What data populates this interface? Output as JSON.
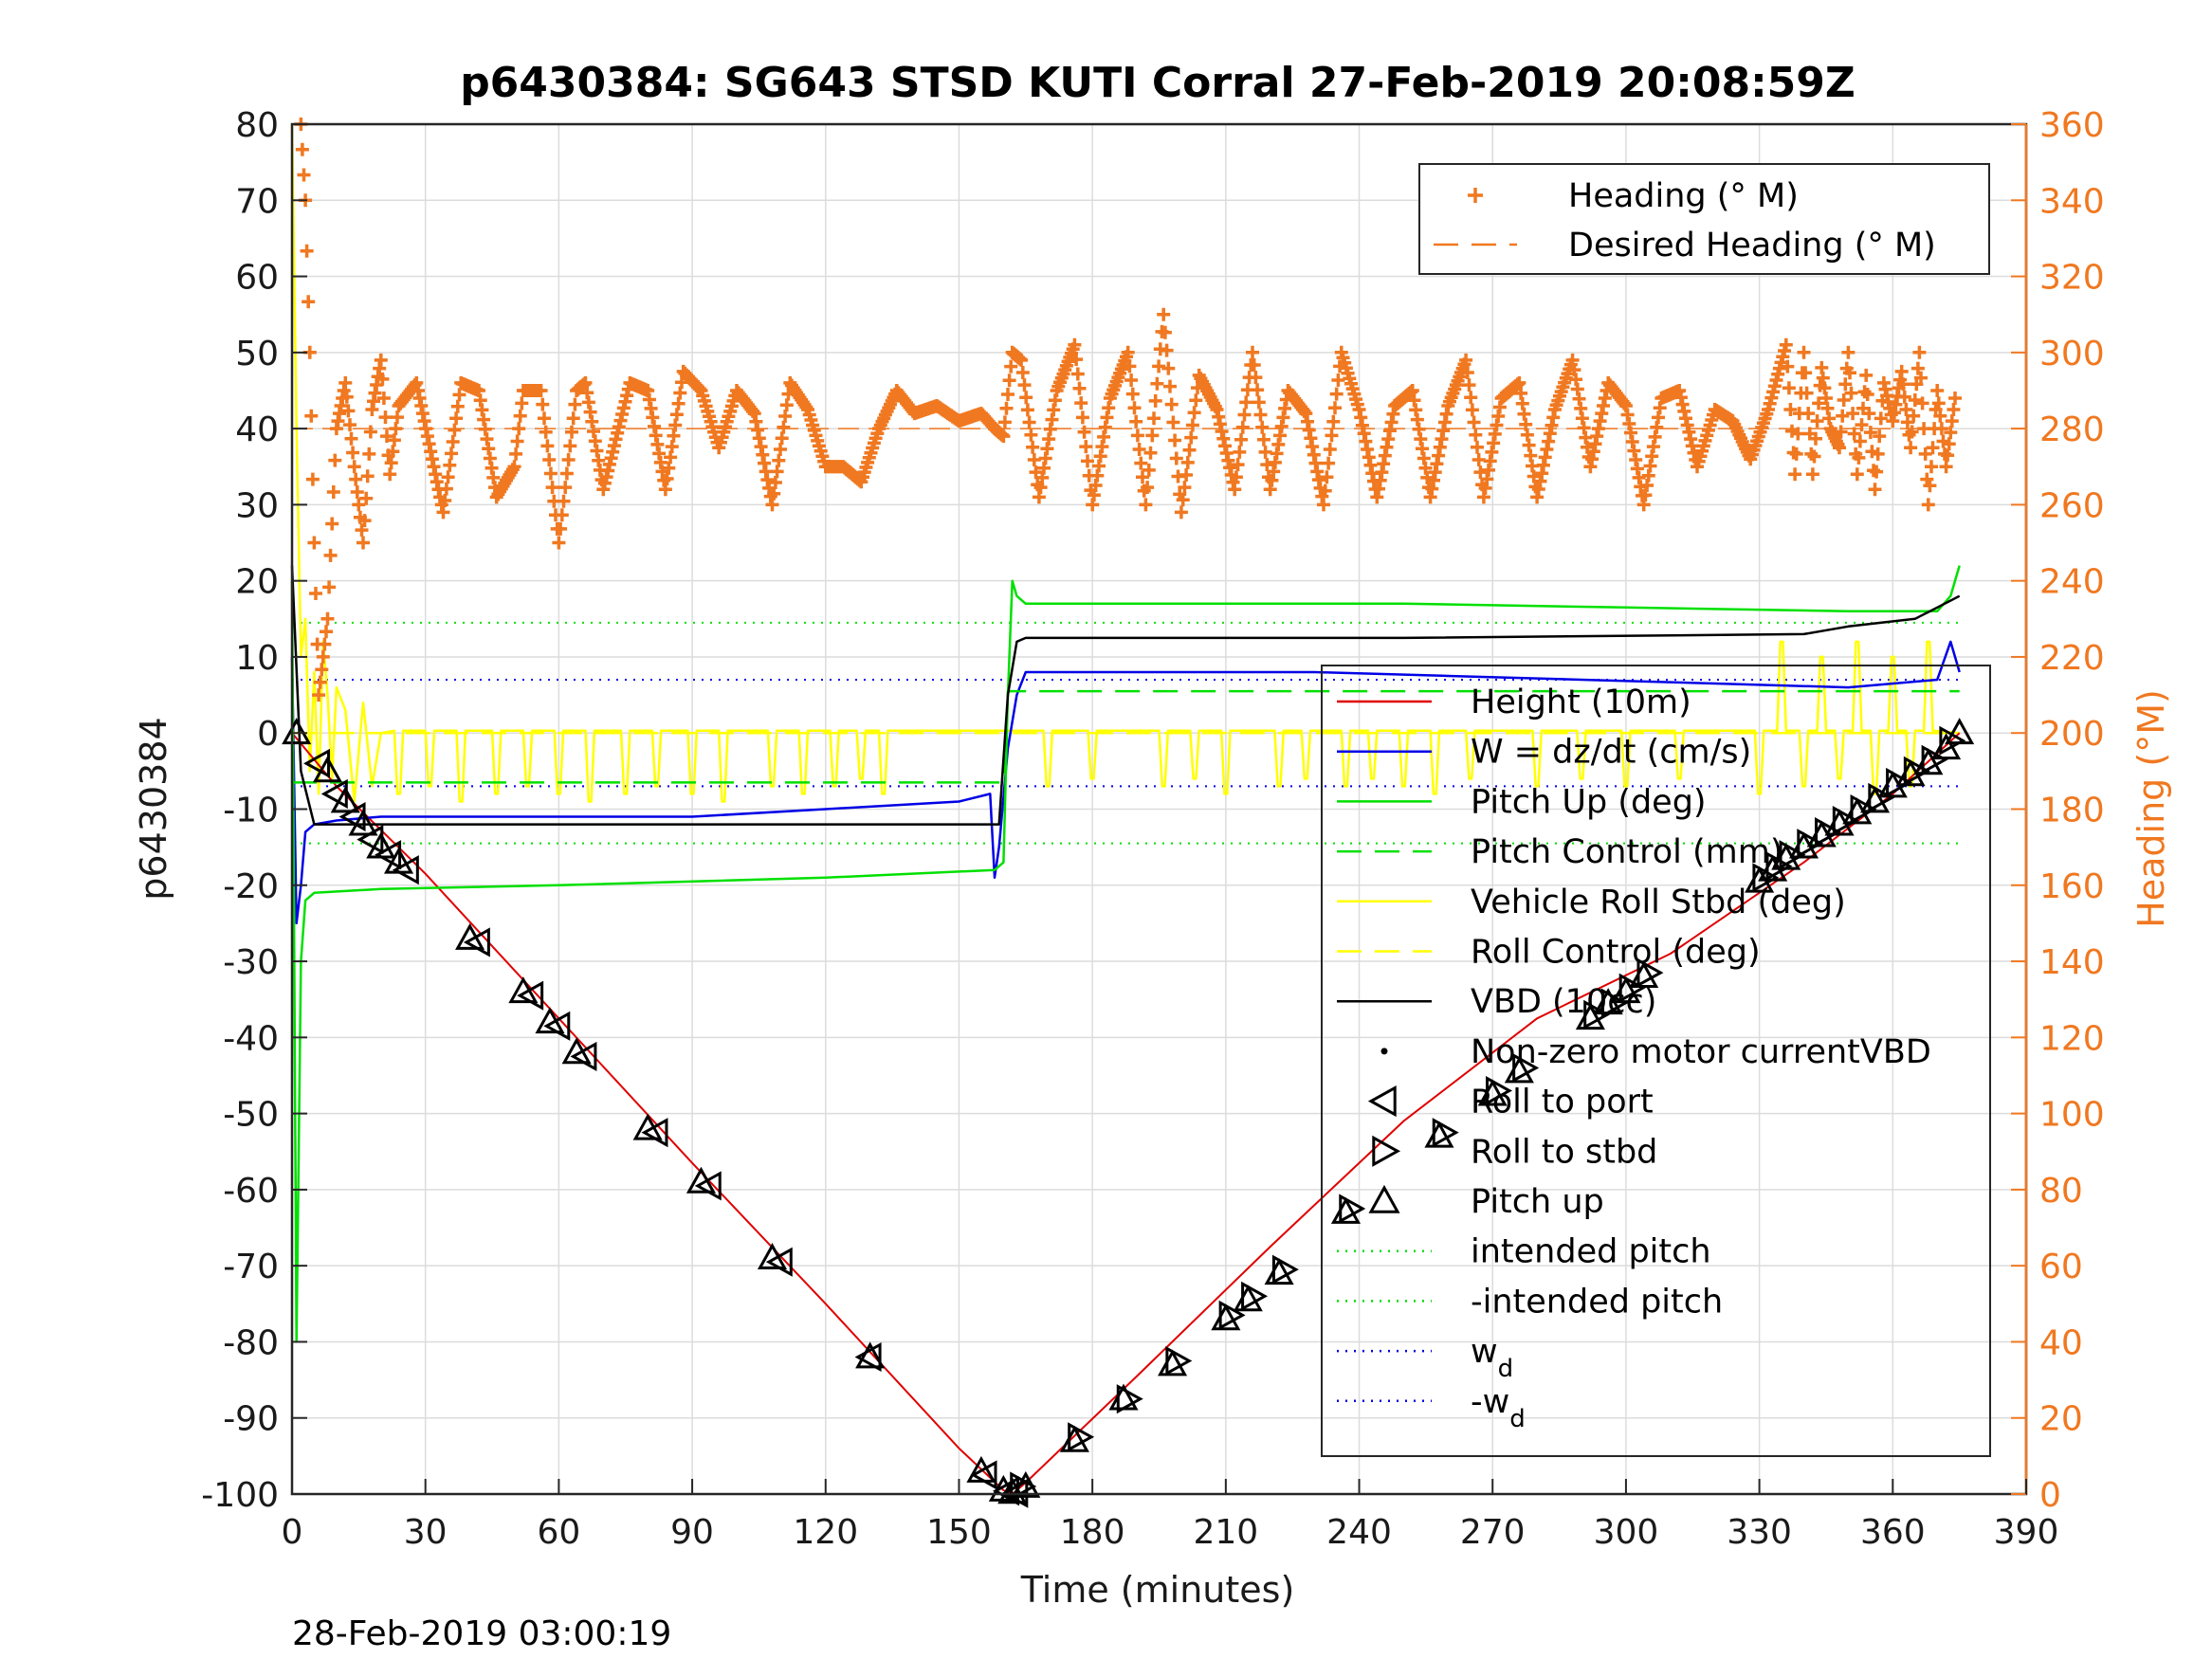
{
  "chart_data": {
    "type": "line",
    "title": "p6430384: SG643 STSD KUTI Corral 27-Feb-2019 20:08:59Z",
    "xlabel": "Time (minutes)",
    "ylabel": "p6430384",
    "ylabel_right": "Heading (°M)",
    "footer_timestamp": "28-Feb-2019 03:00:19",
    "xlim": [
      0,
      390
    ],
    "ylim": [
      -100,
      80
    ],
    "ylim_right": [
      0,
      360
    ],
    "x_ticks": [
      "0",
      "30",
      "60",
      "90",
      "120",
      "150",
      "180",
      "210",
      "240",
      "270",
      "300",
      "330",
      "360",
      "390"
    ],
    "y_ticks": [
      "80",
      "70",
      "60",
      "50",
      "40",
      "30",
      "20",
      "10",
      "0",
      "-10",
      "-20",
      "-30",
      "-40",
      "-50",
      "-60",
      "-70",
      "-80",
      "-90",
      "-100"
    ],
    "y_ticks_right": [
      "360",
      "340",
      "320",
      "300",
      "280",
      "260",
      "240",
      "220",
      "200",
      "180",
      "160",
      "140",
      "120",
      "100",
      "80",
      "60",
      "40",
      "20",
      "0"
    ],
    "grid": true,
    "colors": {
      "heading": "#f07820",
      "height": "#e00000",
      "w": "#0000e6",
      "pitch": "#00e000",
      "roll": "#ffff00",
      "vbd": "#000000"
    },
    "legend_top": [
      {
        "label": "Heading (° M)",
        "style": "plus",
        "color": "#f07820"
      },
      {
        "label": "Desired Heading (° M)",
        "style": "dash",
        "color": "#f07820"
      }
    ],
    "legend_main": [
      {
        "label": "Height (10m)",
        "style": "line",
        "color": "#e00000"
      },
      {
        "label": "W = dz/dt (cm/s)",
        "style": "line",
        "color": "#0000e6"
      },
      {
        "label": "Pitch Up (deg)",
        "style": "line",
        "color": "#00e000"
      },
      {
        "label": "Pitch Control (mm)",
        "style": "dash",
        "color": "#00e000"
      },
      {
        "label": "Vehicle Roll Stbd (deg)",
        "style": "line",
        "color": "#ffff00"
      },
      {
        "label": "Roll Control (deg)",
        "style": "dash",
        "color": "#ffff00"
      },
      {
        "label": "VBD (10cc)",
        "style": "line",
        "color": "#000000"
      },
      {
        "label": "Non-zero motor currentVBD",
        "style": "dot",
        "color": "#000000"
      },
      {
        "label": "Roll to port",
        "style": "tri-left",
        "color": "#000000"
      },
      {
        "label": "Roll to stbd",
        "style": "tri-right",
        "color": "#000000"
      },
      {
        "label": "Pitch up",
        "style": "tri-up",
        "color": "#000000"
      },
      {
        "label": "intended pitch",
        "style": "dot-line",
        "color": "#00e000"
      },
      {
        "label": "-intended pitch",
        "style": "dot-line",
        "color": "#00e000"
      },
      {
        "label": "w",
        "sub": "d",
        "style": "dot-line",
        "color": "#0000e6"
      },
      {
        "label": "-w",
        "sub": "d",
        "style": "dot-line",
        "color": "#0000e6"
      }
    ],
    "reference_lines": {
      "intended_pitch": 14.5,
      "neg_intended_pitch": -14.5,
      "w_d": 7,
      "neg_w_d": -7,
      "desired_heading": 280
    },
    "series": [
      {
        "name": "Height (10m)",
        "color": "#e00000",
        "x": [
          0,
          10,
          30,
          60,
          90,
          120,
          150,
          160,
          162,
          165,
          190,
          220,
          250,
          280,
          310,
          340,
          360,
          375
        ],
        "y": [
          0,
          -7,
          -18.5,
          -37.5,
          -56.5,
          -75,
          -94,
          -99.5,
          -100,
          -98.5,
          -84.5,
          -67.5,
          -51,
          -37.5,
          -29,
          -17,
          -8,
          0
        ]
      },
      {
        "name": "W = dz/dt (cm/s)",
        "color": "#0000e6",
        "x": [
          0,
          1,
          2,
          3,
          5,
          10,
          20,
          40,
          60,
          90,
          120,
          150,
          157,
          158,
          159,
          161,
          163,
          165,
          170,
          200,
          230,
          260,
          290,
          320,
          350,
          370,
          373,
          375
        ],
        "y": [
          10,
          -25,
          -20,
          -13,
          -12,
          -11.5,
          -11,
          -11,
          -11,
          -11,
          -10,
          -9,
          -8,
          -19,
          -15,
          -2,
          5,
          8,
          8,
          8,
          8,
          7.5,
          7,
          6.5,
          6,
          7,
          12,
          8
        ]
      },
      {
        "name": "Pitch Up (deg)",
        "color": "#00e000",
        "x": [
          0,
          1,
          2,
          3,
          5,
          20,
          60,
          120,
          158,
          160,
          161,
          162,
          163,
          165,
          200,
          250,
          300,
          350,
          360,
          370,
          373,
          375
        ],
        "y": [
          20,
          -80,
          -30,
          -22,
          -21,
          -20.5,
          -20,
          -19,
          -18,
          -17,
          5,
          20,
          18,
          17,
          17,
          17,
          16.5,
          16,
          16,
          16,
          18,
          22
        ]
      },
      {
        "name": "Pitch Control (mm)",
        "color": "#00e000",
        "dash": true,
        "x": [
          0,
          160,
          161,
          375
        ],
        "y": [
          -6.5,
          -6.5,
          5.5,
          5.5
        ]
      },
      {
        "name": "Roll Control (deg)",
        "color": "#ffff00",
        "dash": true,
        "x": [
          0,
          375
        ],
        "y": [
          0,
          0
        ]
      },
      {
        "name": "VBD (10cc)",
        "color": "#000000",
        "x": [
          0,
          2,
          5,
          158,
          159,
          161,
          163,
          165,
          250,
          340,
          350,
          365,
          370,
          375
        ],
        "y": [
          22,
          -5,
          -12,
          -12,
          -12,
          5,
          12,
          12.5,
          12.5,
          13,
          14,
          15,
          16.5,
          18
        ]
      }
    ],
    "roll_series": {
      "name": "Vehicle Roll Stbd (deg)",
      "color": "#ffff00",
      "base_dive": 0.3,
      "base_climb": 0.3,
      "spike_times": [
        24,
        31,
        38,
        46,
        53,
        60,
        67,
        75,
        82,
        90,
        97,
        108,
        115,
        122,
        128,
        133,
        170,
        180,
        196,
        203,
        210,
        222,
        228,
        237,
        243,
        250,
        257,
        265,
        280,
        290,
        300,
        312,
        330,
        335,
        340,
        344,
        348,
        352,
        356,
        360,
        364,
        368
      ],
      "spike_values": [
        -8,
        -7,
        -9,
        -8,
        -7,
        -8,
        -9,
        -8,
        -7,
        -8,
        -9,
        -7,
        -8,
        -7,
        -6,
        -8,
        -7,
        -6,
        -7,
        -6,
        -8,
        -7,
        -6,
        -7,
        -6,
        -7,
        -8,
        -6,
        -7,
        -6,
        -7,
        -6,
        -8,
        12,
        -7,
        10,
        -6,
        12,
        -8,
        10,
        -7,
        12
      ],
      "early_x": [
        0,
        1,
        2,
        3,
        4,
        5,
        6,
        7,
        8,
        9,
        10,
        12,
        14,
        16,
        18,
        20
      ],
      "early_y": [
        80,
        40,
        10,
        15,
        -5,
        8,
        -8,
        12,
        5,
        -6,
        6,
        3,
        -9,
        4,
        -7,
        0
      ]
    },
    "heading_series": {
      "name": "Heading (° M)",
      "color": "#f07820",
      "x": [
        2,
        3,
        4,
        5,
        6,
        8,
        10,
        12,
        14,
        16,
        18,
        20,
        22,
        24,
        28,
        34,
        38,
        42,
        46,
        50,
        52,
        56,
        60,
        64,
        66,
        70,
        76,
        80,
        84,
        88,
        92,
        96,
        100,
        104,
        108,
        112,
        116,
        120,
        124,
        128,
        132,
        136,
        140,
        145,
        150,
        155,
        158,
        160,
        162,
        164,
        168,
        172,
        176,
        180,
        184,
        188,
        192,
        196,
        200,
        204,
        208,
        212,
        216,
        220,
        224,
        228,
        232,
        236,
        240,
        244,
        248,
        252,
        256,
        260,
        264,
        268,
        272,
        276,
        280,
        284,
        288,
        292,
        296,
        300,
        304,
        308,
        312,
        316,
        320,
        324,
        328,
        332,
        336,
        338,
        340,
        342,
        344,
        346,
        348,
        350,
        352,
        354,
        356,
        358,
        360,
        362,
        364,
        366,
        368,
        370,
        372,
        374
      ],
      "y": [
        360,
        340,
        300,
        250,
        210,
        230,
        280,
        292,
        270,
        250,
        285,
        298,
        268,
        286,
        292,
        258,
        292,
        290,
        262,
        270,
        290,
        290,
        250,
        290,
        292,
        264,
        292,
        290,
        264,
        295,
        290,
        275,
        290,
        284,
        260,
        292,
        285,
        270,
        270,
        266,
        280,
        290,
        284,
        286,
        282,
        284,
        280,
        278,
        300,
        298,
        262,
        290,
        302,
        260,
        288,
        300,
        260,
        310,
        258,
        294,
        285,
        264,
        300,
        264,
        290,
        284,
        260,
        300,
        285,
        262,
        286,
        290,
        262,
        286,
        298,
        262,
        288,
        292,
        262,
        285,
        298,
        270,
        292,
        286,
        260,
        288,
        290,
        270,
        285,
        282,
        272,
        285,
        302,
        268,
        300,
        268,
        296,
        280,
        275,
        300,
        268,
        294,
        264,
        292,
        282,
        295,
        275,
        300,
        260,
        290,
        270,
        288
      ]
    },
    "markers": {
      "pitch_up_x": [
        1,
        8,
        12,
        16,
        20,
        24,
        40,
        52,
        58,
        64,
        80,
        92,
        108,
        130,
        155,
        160,
        162,
        165,
        176,
        187,
        198,
        210,
        215,
        222,
        237,
        258,
        270,
        276,
        292,
        296,
        300,
        304,
        330,
        333,
        336,
        340,
        344,
        348,
        352,
        356,
        360,
        364,
        368,
        372,
        375
      ],
      "pitch_up_y": [
        0,
        -5,
        -9,
        -12,
        -15,
        -17,
        -27,
        -34,
        -38,
        -42,
        -52,
        -59,
        -69,
        -82,
        -97,
        -99.5,
        -99.8,
        -99,
        -93,
        -87.5,
        -83,
        -77,
        -74.5,
        -71,
        -63,
        -53,
        -47.5,
        -44.5,
        -37.5,
        -35.5,
        -34,
        -32,
        -19.5,
        -18,
        -16.5,
        -15,
        -13.5,
        -12,
        -10.5,
        -9,
        -7,
        -5.5,
        -4,
        -2,
        0
      ],
      "roll_port_x": [
        6,
        10,
        14,
        18,
        22,
        26,
        42,
        54,
        60,
        66,
        82,
        94,
        110,
        130,
        156,
        161,
        163
      ],
      "roll_port_y": [
        -4,
        -8,
        -11,
        -14,
        -16,
        -18,
        -27.5,
        -34.5,
        -38.5,
        -42.5,
        -52.5,
        -59.5,
        -69.5,
        -82,
        -97.5,
        -99.6,
        -99.9
      ],
      "roll_stbd_x": [
        164,
        177,
        188,
        199,
        211,
        216,
        223,
        238,
        259,
        271,
        277,
        293,
        297,
        301,
        305,
        331,
        334,
        337,
        341,
        345,
        349,
        353,
        357,
        361,
        365,
        369,
        373
      ],
      "roll_stbd_y": [
        -99,
        -92.5,
        -87.5,
        -82.5,
        -76.5,
        -74,
        -70.5,
        -62.5,
        -52.5,
        -47,
        -44,
        -37,
        -35.5,
        -33.5,
        -31.5,
        -19,
        -17.5,
        -16,
        -14.5,
        -13,
        -11.5,
        -10,
        -8.5,
        -6.5,
        -5,
        -3.5,
        -1
      ]
    }
  }
}
